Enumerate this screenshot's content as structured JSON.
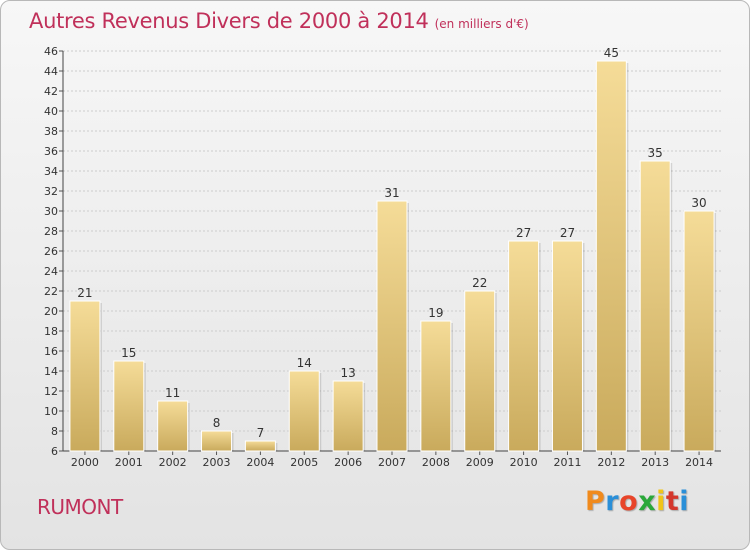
{
  "header": {
    "title": "Autres Revenus Divers de 2000 à 2014",
    "unit": "(en milliers d'€)"
  },
  "footer": {
    "commune": "RUMONT",
    "brand": "Proxiti",
    "brand_colors": [
      "#f08a1c",
      "#2a8fd8",
      "#e8452a",
      "#2aa83a",
      "#f0c419",
      "#d4372c",
      "#2a8fd8"
    ]
  },
  "colors": {
    "title": "#c0305a",
    "bar_light": "#f5dc98",
    "bar_dark": "#c9aa5c",
    "grid": "#cccccc",
    "axis_text": "#333333"
  },
  "chart_data": {
    "type": "bar",
    "title": "Autres Revenus Divers de 2000 à 2014",
    "ylabel": "",
    "xlabel": "",
    "categories": [
      "2000",
      "2001",
      "2002",
      "2003",
      "2004",
      "2005",
      "2006",
      "2007",
      "2008",
      "2009",
      "2010",
      "2011",
      "2012",
      "2013",
      "2014"
    ],
    "values": [
      21,
      15,
      11,
      8,
      7,
      14,
      13,
      31,
      19,
      22,
      27,
      27,
      45,
      35,
      30
    ],
    "ylim": [
      6,
      46
    ],
    "yticks": [
      6,
      8,
      10,
      12,
      14,
      16,
      18,
      20,
      22,
      24,
      26,
      28,
      30,
      32,
      34,
      36,
      38,
      40,
      42,
      44,
      46
    ],
    "grid": true,
    "data_labels": true
  }
}
